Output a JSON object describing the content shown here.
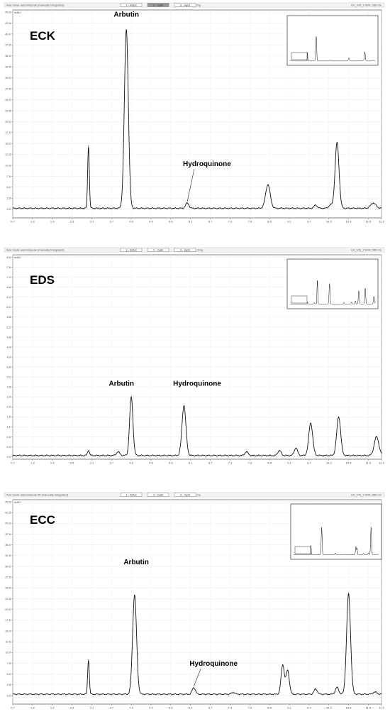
{
  "chart_data": [
    {
      "type": "line",
      "sample_label": "ECK",
      "header_left": "Aviv mode autumn/peak (manually integrated)",
      "header_center": "ReKonto 1 mg",
      "header_right": "UV_VIS_3 WVL:280 nm",
      "ylabel": "mAU",
      "tabs": [
        "1 - Arbut",
        "2 - Galli",
        "3 - Hydr"
      ],
      "xlim": [
        0.7,
        11.9
      ],
      "ylim": [
        -2,
        45.5
      ],
      "xticks": [
        0.7,
        1.3,
        1.9,
        2.5,
        3.1,
        3.7,
        4.3,
        4.9,
        5.5,
        6.1,
        6.7,
        7.3,
        7.9,
        8.5,
        9.1,
        9.7,
        10.3,
        10.9,
        11.5,
        11.9
      ],
      "yticks": [
        0.0,
        2.5,
        5.0,
        7.5,
        10.0,
        12.5,
        15.0,
        17.5,
        20.0,
        22.5,
        25.0,
        27.5,
        30.0,
        32.5,
        35.0,
        37.5,
        40.0,
        42.5,
        45.0
      ],
      "baseline": 0.2,
      "peaks": [
        {
          "x": 3.0,
          "height": 14.2,
          "width": 0.025
        },
        {
          "x": 4.15,
          "height": 40.8,
          "width": 0.06
        },
        {
          "x": 6.0,
          "height": 1.2,
          "width": 0.05
        },
        {
          "x": 8.45,
          "height": 5.4,
          "width": 0.07
        },
        {
          "x": 9.9,
          "height": 0.7,
          "width": 0.05
        },
        {
          "x": 10.35,
          "height": 0.8,
          "width": 0.05
        },
        {
          "x": 10.55,
          "height": 15.0,
          "width": 0.06
        },
        {
          "x": 11.65,
          "height": 1.2,
          "width": 0.08
        }
      ],
      "annotations": [
        {
          "text": "Arbutin",
          "x": 4.15,
          "y": 44.0
        },
        {
          "text": "Hydroquinone",
          "x": 6.6,
          "y": 9.8
        }
      ]
    },
    {
      "type": "line",
      "sample_label": "EDS",
      "header_left": "Aviv mode autumn/peak (manually integrated)",
      "header_center": "PubLiMOD 1 2mg",
      "header_right": "UV_VIS_3 WVL:280 nm",
      "ylabel": "mAU",
      "tabs": [
        "1 - Arbut",
        "2 - Galli",
        "3 - Hydr"
      ],
      "xlim": [
        0.7,
        11.9
      ],
      "ylim": [
        -0.1,
        8.1
      ],
      "xticks": [
        0.7,
        1.3,
        1.9,
        2.5,
        3.1,
        3.7,
        4.3,
        4.9,
        5.5,
        6.1,
        6.7,
        7.3,
        7.9,
        8.5,
        9.1,
        9.7,
        10.3,
        10.9,
        11.5,
        11.9
      ],
      "yticks": [
        0.0,
        0.4,
        0.8,
        1.2,
        1.6,
        2.0,
        2.4,
        2.8,
        3.2,
        3.6,
        4.0,
        4.4,
        4.8,
        5.2,
        5.6,
        6.0,
        6.4,
        6.8,
        7.2,
        7.6,
        8.0
      ],
      "baseline": 0.05,
      "peaks": [
        {
          "x": 3.0,
          "height": 0.2,
          "width": 0.03
        },
        {
          "x": 3.9,
          "height": 0.15,
          "width": 0.05
        },
        {
          "x": 4.3,
          "height": 2.35,
          "width": 0.05
        },
        {
          "x": 5.9,
          "height": 2.0,
          "width": 0.06
        },
        {
          "x": 7.8,
          "height": 0.15,
          "width": 0.05
        },
        {
          "x": 8.8,
          "height": 0.2,
          "width": 0.05
        },
        {
          "x": 9.3,
          "height": 0.3,
          "width": 0.05
        },
        {
          "x": 9.75,
          "height": 1.3,
          "width": 0.06
        },
        {
          "x": 10.6,
          "height": 1.55,
          "width": 0.06
        },
        {
          "x": 11.75,
          "height": 0.75,
          "width": 0.07
        }
      ],
      "annotations": [
        {
          "text": "Arbutin",
          "x": 4.0,
          "y": 2.85
        },
        {
          "text": "Hydroquinone",
          "x": 6.3,
          "y": 2.85
        }
      ]
    },
    {
      "type": "line",
      "sample_label": "ECC",
      "header_left": "Aviv mode autumn/peak 60 (manually integrated)",
      "header_center": "RoKonto 1 mg",
      "header_right": "UV_VIS_3 WVL:280 nm",
      "ylabel": "mAU",
      "tabs": [
        "1 - Arbut",
        "2 - Galli",
        "3 - Hydr"
      ],
      "xlim": [
        0.7,
        11.9
      ],
      "ylim": [
        -2,
        45.5
      ],
      "xticks": [
        0.7,
        1.3,
        1.9,
        2.5,
        3.1,
        3.7,
        4.3,
        4.9,
        5.5,
        6.1,
        6.7,
        7.3,
        7.9,
        8.5,
        9.1,
        9.7,
        10.3,
        10.9,
        11.5,
        11.9
      ],
      "yticks": [
        0.0,
        2.5,
        5.0,
        7.5,
        10.0,
        12.5,
        15.0,
        17.5,
        20.0,
        22.5,
        25.0,
        27.5,
        30.0,
        32.5,
        35.0,
        37.5,
        40.0,
        42.5,
        45.0
      ],
      "baseline": 0.3,
      "peaks": [
        {
          "x": 3.0,
          "height": 8.0,
          "width": 0.025
        },
        {
          "x": 4.4,
          "height": 23.0,
          "width": 0.06
        },
        {
          "x": 6.2,
          "height": 1.5,
          "width": 0.05
        },
        {
          "x": 7.4,
          "height": 0.4,
          "width": 0.05
        },
        {
          "x": 8.9,
          "height": 6.8,
          "width": 0.05
        },
        {
          "x": 9.05,
          "height": 5.5,
          "width": 0.05
        },
        {
          "x": 9.9,
          "height": 1.2,
          "width": 0.05
        },
        {
          "x": 10.55,
          "height": 1.6,
          "width": 0.05
        },
        {
          "x": 10.9,
          "height": 23.3,
          "width": 0.06
        },
        {
          "x": 11.7,
          "height": 0.5,
          "width": 0.06
        }
      ],
      "annotations": [
        {
          "text": "Arbutin",
          "x": 4.45,
          "y": 30.5
        },
        {
          "text": "Hydroquinone",
          "x": 6.8,
          "y": 6.9
        }
      ]
    }
  ]
}
